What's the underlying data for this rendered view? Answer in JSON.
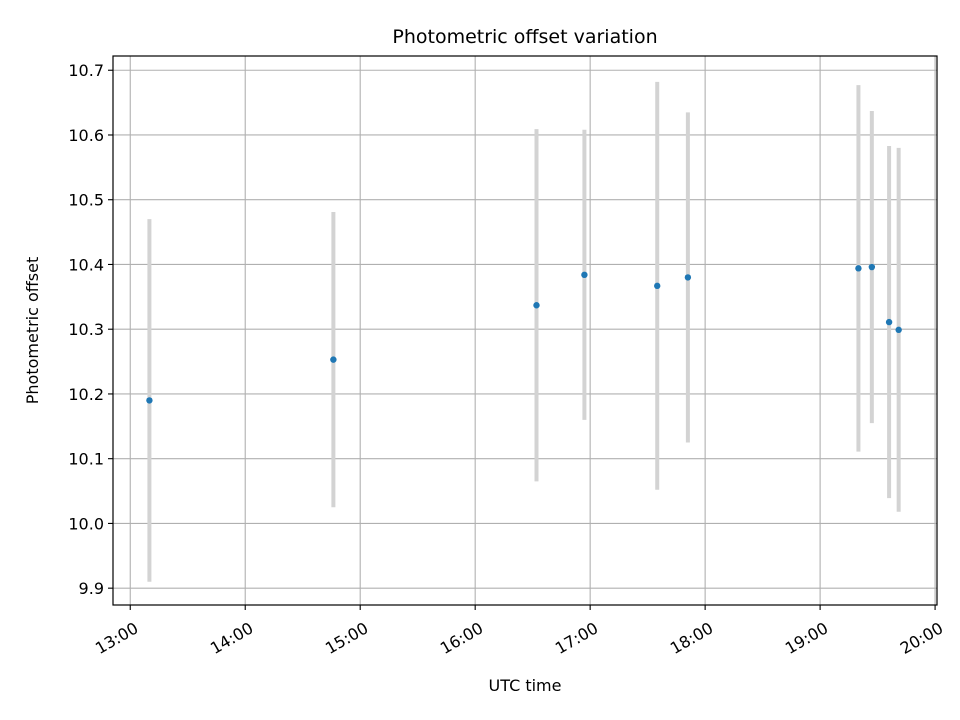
{
  "chart_data": {
    "type": "scatter",
    "title": "Photometric offset variation",
    "xlabel": "UTC time",
    "ylabel": "Photometric offset",
    "x_ticks": [
      "13:00",
      "14:00",
      "15:00",
      "16:00",
      "17:00",
      "18:00",
      "19:00",
      "20:00"
    ],
    "y_ticks": [
      "9.9",
      "10.0",
      "10.1",
      "10.2",
      "10.3",
      "10.4",
      "10.5",
      "10.6",
      "10.7"
    ],
    "xlim": [
      "12:51",
      "20:01"
    ],
    "ylim": [
      9.874,
      10.722
    ],
    "grid": true,
    "colors": {
      "point": "#1f77b4",
      "errorbar": "#d3d3d3",
      "grid": "#b0b0b0"
    },
    "points": [
      {
        "x": "13:10",
        "y": 10.19,
        "err": 0.28
      },
      {
        "x": "14:46",
        "y": 10.253,
        "err": 0.228
      },
      {
        "x": "16:32",
        "y": 10.337,
        "err": 0.272
      },
      {
        "x": "16:57",
        "y": 10.384,
        "err": 0.224
      },
      {
        "x": "17:35",
        "y": 10.367,
        "err": 0.315
      },
      {
        "x": "17:51",
        "y": 10.38,
        "err": 0.255
      },
      {
        "x": "19:20",
        "y": 10.394,
        "err": 0.283
      },
      {
        "x": "19:27",
        "y": 10.396,
        "err": 0.241
      },
      {
        "x": "19:36",
        "y": 10.311,
        "err": 0.272
      },
      {
        "x": "19:41",
        "y": 10.299,
        "err": 0.281
      }
    ]
  }
}
